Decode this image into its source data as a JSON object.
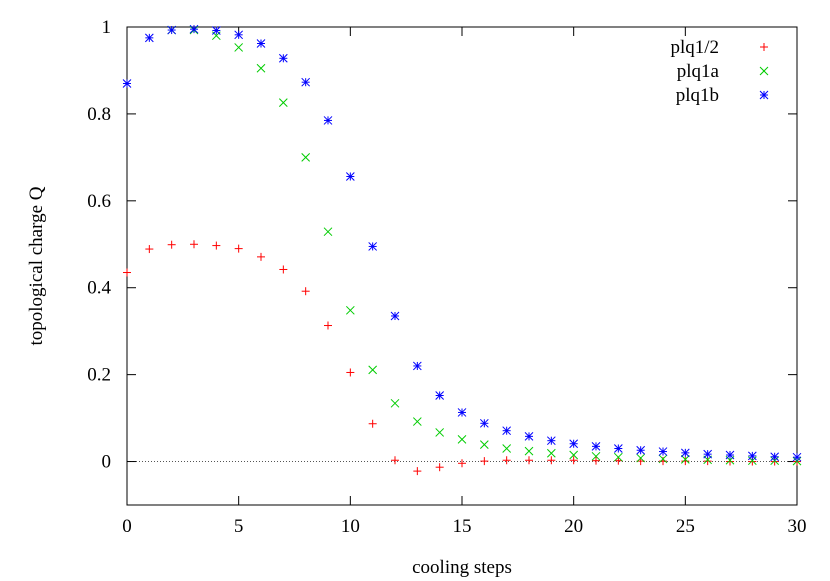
{
  "chart_data": {
    "type": "scatter",
    "title": "",
    "xlabel": "cooling steps",
    "ylabel": "topological charge Q",
    "xlim": [
      0,
      30
    ],
    "ylim": [
      -0.1,
      1.0
    ],
    "xticks": [
      0,
      5,
      10,
      15,
      20,
      25,
      30
    ],
    "yticks": [
      0,
      0.2,
      0.4,
      0.6,
      0.8,
      1
    ],
    "ytick_labels": [
      "0",
      "0.2",
      "0.4",
      "0.6",
      "0.8",
      "1"
    ],
    "zero_line": true,
    "grid": false,
    "legend_position": "top-right",
    "series": [
      {
        "name": "plq1/2",
        "marker": "plus",
        "color": "#ff0000",
        "x": [
          0,
          1,
          2,
          3,
          4,
          5,
          6,
          7,
          8,
          9,
          10,
          11,
          12,
          13,
          14,
          15,
          16,
          17,
          18,
          19,
          20,
          21,
          22,
          23,
          24,
          25,
          26,
          27,
          28,
          29,
          30
        ],
        "y": [
          0.435,
          0.489,
          0.499,
          0.5,
          0.497,
          0.49,
          0.471,
          0.442,
          0.392,
          0.313,
          0.205,
          0.087,
          0.003,
          -0.022,
          -0.013,
          -0.004,
          0.001,
          0.003,
          0.003,
          0.003,
          0.003,
          0.002,
          0.002,
          0.001,
          0.001,
          0.001,
          0.001,
          0.0,
          0.0,
          0.0,
          0.0
        ]
      },
      {
        "name": "plq1a",
        "marker": "cross",
        "color": "#00cc00",
        "x": [
          2,
          3,
          4,
          5,
          6,
          7,
          8,
          9,
          10,
          11,
          12,
          13,
          14,
          15,
          16,
          17,
          18,
          19,
          20,
          21,
          22,
          23,
          24,
          25,
          26,
          27,
          28,
          29,
          30
        ],
        "y": [
          0.993,
          0.993,
          0.98,
          0.953,
          0.905,
          0.826,
          0.7,
          0.529,
          0.348,
          0.211,
          0.134,
          0.092,
          0.067,
          0.051,
          0.039,
          0.03,
          0.024,
          0.019,
          0.015,
          0.012,
          0.01,
          0.008,
          0.006,
          0.005,
          0.004,
          0.003,
          0.002,
          0.002,
          0.001
        ]
      },
      {
        "name": "plq1b",
        "marker": "star",
        "color": "#0000ff",
        "x": [
          0,
          1,
          2,
          3,
          4,
          5,
          6,
          7,
          8,
          9,
          10,
          11,
          12,
          13,
          14,
          15,
          16,
          17,
          18,
          19,
          20,
          21,
          22,
          23,
          24,
          25,
          26,
          27,
          28,
          29,
          30
        ],
        "y": [
          0.87,
          0.975,
          0.993,
          0.995,
          0.992,
          0.982,
          0.962,
          0.928,
          0.873,
          0.785,
          0.656,
          0.495,
          0.335,
          0.22,
          0.152,
          0.113,
          0.088,
          0.071,
          0.058,
          0.048,
          0.041,
          0.035,
          0.03,
          0.026,
          0.023,
          0.02,
          0.017,
          0.015,
          0.013,
          0.011,
          0.01
        ]
      }
    ]
  }
}
